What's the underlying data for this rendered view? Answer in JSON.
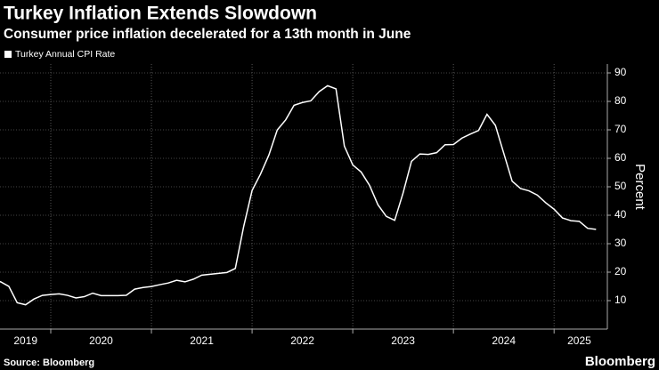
{
  "chart_data": {
    "type": "line",
    "title": "Turkey Inflation Extends Slowdown",
    "subtitle": "Consumer price inflation decelerated for a 13th month in June",
    "source": "Source: Bloomberg",
    "brand": "Bloomberg",
    "y_label": "Percent",
    "categories": [
      null,
      null,
      null,
      null,
      "2019",
      null,
      null,
      null,
      null,
      null,
      null,
      null,
      null,
      "2020",
      null,
      null,
      null,
      null,
      null,
      null,
      null,
      null,
      null,
      null,
      null,
      "2021",
      null,
      null,
      null,
      null,
      null,
      null,
      null,
      null,
      null,
      null,
      null,
      "2022",
      null,
      null,
      null,
      null,
      null,
      null,
      null,
      null,
      null,
      null,
      null,
      "2023",
      null,
      null,
      null,
      null,
      null,
      null,
      null,
      null,
      null,
      null,
      null,
      "2024",
      null,
      null,
      null,
      null,
      null,
      null,
      null,
      null,
      "2025",
      null,
      null
    ],
    "series": [
      {
        "name": "Turkey Annual CPI Rate",
        "color": "#ffffff",
        "values": [
          15.72,
          16.65,
          15.01,
          9.26,
          8.55,
          10.56,
          11.84,
          12.15,
          12.37,
          11.86,
          10.94,
          11.39,
          12.62,
          11.76,
          11.77,
          11.75,
          11.89,
          14.03,
          14.6,
          14.97,
          15.61,
          16.19,
          17.14,
          16.59,
          17.53,
          18.95,
          19.25,
          19.58,
          19.89,
          21.31,
          36.08,
          48.69,
          54.44,
          61.14,
          69.97,
          73.5,
          78.62,
          79.6,
          80.21,
          83.45,
          85.51,
          84.39,
          64.27,
          57.68,
          55.18,
          50.51,
          43.68,
          39.59,
          38.21,
          47.83,
          58.94,
          61.53,
          61.36,
          61.98,
          64.77,
          64.86,
          67.07,
          68.5,
          69.8,
          75.45,
          71.6,
          61.78,
          51.97,
          49.38,
          48.58,
          47.09,
          44.38,
          42.12,
          39.05,
          38.1,
          37.86,
          35.41,
          35.05
        ]
      }
    ],
    "ylim": [
      0,
      95
    ],
    "yticks": [
      10,
      20,
      30,
      40,
      50,
      60,
      70,
      80,
      90
    ],
    "grid": true
  }
}
